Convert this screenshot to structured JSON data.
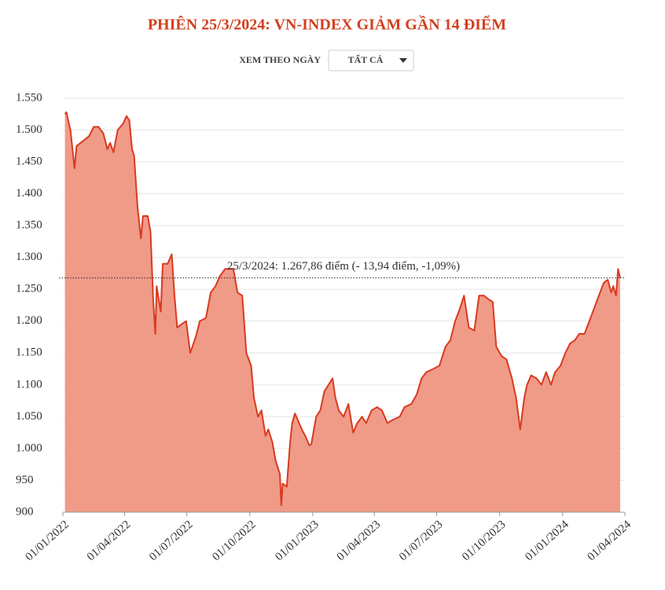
{
  "chart_data": {
    "type": "area",
    "title": "PHIÊN 25/3/2024: VN-INDEX GIẢM GẦN 14 ĐIỂM",
    "controls": {
      "label": "XEM THEO NGÀY",
      "dropdown": "TẤT CẢ"
    },
    "annotation": {
      "text": "25/3/2024: 1.267,86 điểm (- 13,94 điểm, -1,09%)",
      "value": 1267.86
    },
    "color": "#d93a1f",
    "fill": "#f09a88",
    "grid": true,
    "xlim": [
      "2022-01-01",
      "2024-04-01"
    ],
    "xticks": [
      {
        "value": "2022-01-01",
        "label": "01/01/2022"
      },
      {
        "value": "2022-04-01",
        "label": "01/04/2022"
      },
      {
        "value": "2022-07-01",
        "label": "01/07/2022"
      },
      {
        "value": "2022-10-01",
        "label": "01/10/2022"
      },
      {
        "value": "2023-01-01",
        "label": "01/01/2023"
      },
      {
        "value": "2023-04-01",
        "label": "01/04/2023"
      },
      {
        "value": "2023-07-01",
        "label": "01/07/2023"
      },
      {
        "value": "2023-10-01",
        "label": "01/10/2023"
      },
      {
        "value": "2024-01-01",
        "label": "01/01/2024"
      },
      {
        "value": "2024-04-01",
        "label": "01/04/2024"
      }
    ],
    "ylim": [
      900,
      1550
    ],
    "yticks": [
      900,
      950,
      {
        "value": 1000,
        "label": "1.000"
      },
      {
        "value": 1050,
        "label": "1.050"
      },
      {
        "value": 1100,
        "label": "1.100"
      },
      {
        "value": 1150,
        "label": "1.150"
      },
      {
        "value": 1200,
        "label": "1.200"
      },
      {
        "value": 1250,
        "label": "1.250"
      },
      {
        "value": 1300,
        "label": "1.300"
      },
      {
        "value": 1350,
        "label": "1.350"
      },
      {
        "value": 1400,
        "label": "1.400"
      },
      {
        "value": 1450,
        "label": "1.450"
      },
      {
        "value": 1500,
        "label": "1.500"
      },
      {
        "value": 1550,
        "label": "1.550"
      }
    ],
    "x": [
      "2022-01-04",
      "2022-01-06",
      "2022-01-12",
      "2022-01-18",
      "2022-01-21",
      "2022-01-27",
      "2022-02-08",
      "2022-02-15",
      "2022-02-22",
      "2022-03-01",
      "2022-03-07",
      "2022-03-11",
      "2022-03-16",
      "2022-03-22",
      "2022-03-30",
      "2022-04-04",
      "2022-04-08",
      "2022-04-12",
      "2022-04-15",
      "2022-04-20",
      "2022-04-25",
      "2022-04-28",
      "2022-05-05",
      "2022-05-09",
      "2022-05-13",
      "2022-05-16",
      "2022-05-18",
      "2022-05-24",
      "2022-05-27",
      "2022-06-03",
      "2022-06-09",
      "2022-06-13",
      "2022-06-17",
      "2022-06-23",
      "2022-06-30",
      "2022-07-06",
      "2022-07-14",
      "2022-07-20",
      "2022-07-29",
      "2022-08-05",
      "2022-08-12",
      "2022-08-18",
      "2022-08-26",
      "2022-09-07",
      "2022-09-13",
      "2022-09-20",
      "2022-09-26",
      "2022-10-03",
      "2022-10-07",
      "2022-10-13",
      "2022-10-18",
      "2022-10-24",
      "2022-10-28",
      "2022-11-03",
      "2022-11-08",
      "2022-11-14",
      "2022-11-16",
      "2022-11-18",
      "2022-11-24",
      "2022-11-29",
      "2022-12-02",
      "2022-12-06",
      "2022-12-12",
      "2022-12-16",
      "2022-12-21",
      "2022-12-27",
      "2022-12-30",
      "2023-01-06",
      "2023-01-12",
      "2023-01-18",
      "2023-01-30",
      "2023-02-03",
      "2023-02-08",
      "2023-02-15",
      "2023-02-22",
      "2023-03-01",
      "2023-03-07",
      "2023-03-14",
      "2023-03-20",
      "2023-03-28",
      "2023-04-05",
      "2023-04-12",
      "2023-04-20",
      "2023-04-28",
      "2023-05-08",
      "2023-05-15",
      "2023-05-25",
      "2023-06-02",
      "2023-06-09",
      "2023-06-16",
      "2023-06-26",
      "2023-07-05",
      "2023-07-14",
      "2023-07-21",
      "2023-07-28",
      "2023-08-04",
      "2023-08-10",
      "2023-08-17",
      "2023-08-25",
      "2023-09-01",
      "2023-09-08",
      "2023-09-14",
      "2023-09-21",
      "2023-09-26",
      "2023-10-04",
      "2023-10-11",
      "2023-10-19",
      "2023-10-25",
      "2023-10-31",
      "2023-11-06",
      "2023-11-10",
      "2023-11-16",
      "2023-11-24",
      "2023-12-01",
      "2023-12-08",
      "2023-12-15",
      "2023-12-21",
      "2023-12-29",
      "2024-01-05",
      "2024-01-12",
      "2024-01-19",
      "2024-01-25",
      "2024-02-02",
      "2024-02-16",
      "2024-02-23",
      "2024-03-01",
      "2024-03-07",
      "2024-03-12",
      "2024-03-15",
      "2024-03-19",
      "2024-03-22",
      "2024-03-25"
    ],
    "values": [
      1525,
      1528,
      1500,
      1440,
      1475,
      1480,
      1490,
      1505,
      1505,
      1495,
      1470,
      1480,
      1465,
      1500,
      1510,
      1522,
      1515,
      1470,
      1460,
      1380,
      1330,
      1365,
      1365,
      1340,
      1230,
      1180,
      1255,
      1215,
      1290,
      1290,
      1305,
      1240,
      1190,
      1195,
      1200,
      1150,
      1175,
      1200,
      1205,
      1245,
      1255,
      1270,
      1282,
      1282,
      1245,
      1240,
      1150,
      1130,
      1080,
      1050,
      1060,
      1020,
      1030,
      1010,
      980,
      960,
      911,
      945,
      940,
      1010,
      1040,
      1055,
      1040,
      1030,
      1020,
      1005,
      1007,
      1050,
      1060,
      1090,
      1110,
      1080,
      1060,
      1050,
      1070,
      1025,
      1040,
      1050,
      1040,
      1060,
      1065,
      1060,
      1040,
      1045,
      1050,
      1065,
      1070,
      1085,
      1110,
      1120,
      1125,
      1130,
      1160,
      1170,
      1200,
      1220,
      1240,
      1190,
      1185,
      1240,
      1240,
      1235,
      1230,
      1160,
      1145,
      1140,
      1110,
      1080,
      1030,
      1080,
      1100,
      1115,
      1110,
      1100,
      1120,
      1100,
      1120,
      1130,
      1150,
      1165,
      1170,
      1180,
      1180,
      1220,
      1240,
      1260,
      1265,
      1245,
      1255,
      1240,
      1281.8,
      1267.86
    ]
  }
}
